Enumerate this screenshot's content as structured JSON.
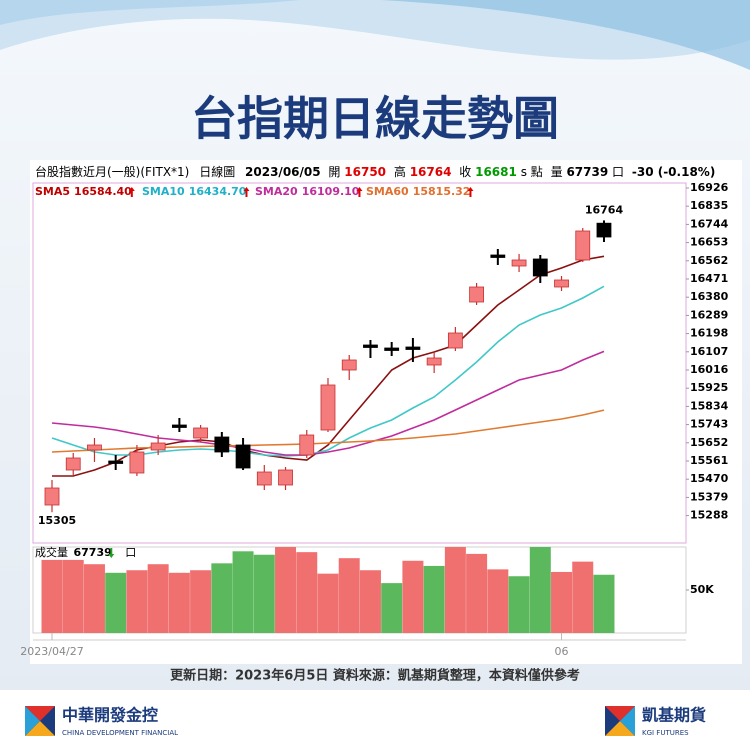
{
  "chart_data": {
    "type": "candlestick",
    "title": "台指期日線走勢圖",
    "header": {
      "instrument": "台股指數近月(一般)(FITX*1)",
      "period": "日線圖",
      "date": "2023/06/05",
      "open_label": "開",
      "high_label": "高",
      "close_label": "收",
      "close_suffix": "s 點",
      "volume_label": "量",
      "unit": "口",
      "change": "-30 (-0.18%)"
    },
    "categories": [
      "2023/04/27",
      null,
      null,
      null,
      null,
      null,
      null,
      null,
      null,
      null,
      null,
      null,
      null,
      null,
      null,
      null,
      null,
      null,
      null,
      null,
      null,
      null,
      null,
      null,
      "06",
      null,
      null
    ],
    "open": [
      15341,
      15516,
      15616,
      15561,
      15501,
      15616,
      15741,
      15676,
      15681,
      15641,
      15441,
      15441,
      15591,
      15716,
      16016,
      16141,
      16126,
      16131,
      16041,
      16126,
      16356,
      16591,
      16536,
      16571,
      16431,
      16566,
      16750
    ],
    "high": [
      15466,
      15601,
      15676,
      15591,
      15641,
      15691,
      15776,
      15741,
      15706,
      15676,
      15541,
      15531,
      15716,
      15976,
      16091,
      16166,
      16156,
      16176,
      16106,
      16231,
      16451,
      16621,
      16596,
      16591,
      16486,
      16726,
      16764
    ],
    "low": [
      15305,
      15491,
      15556,
      15516,
      15486,
      15591,
      15706,
      15656,
      15581,
      15516,
      15416,
      15416,
      15576,
      15706,
      15966,
      16076,
      16086,
      16056,
      16001,
      16111,
      16341,
      16541,
      16506,
      16451,
      16411,
      16556,
      16656
    ],
    "close": [
      15426,
      15576,
      15641,
      15556,
      15606,
      15651,
      15736,
      15726,
      15606,
      15526,
      15506,
      15516,
      15691,
      15941,
      16066,
      16131,
      16126,
      16126,
      16076,
      16201,
      16431,
      16586,
      16566,
      16486,
      16466,
      16711,
      16681
    ],
    "up_color": "#f47c7c",
    "down_color": "#000000",
    "series": [
      {
        "name": "SMA5",
        "color": "#8b1010",
        "label_color": "#c00000",
        "value_label": "16584.40",
        "values": [
          15486,
          15486,
          15516,
          15556,
          15616,
          15636,
          15656,
          15666,
          15656,
          15616,
          15591,
          15576,
          15566,
          15641,
          15766,
          15891,
          16016,
          16076,
          16106,
          16141,
          16241,
          16341,
          16416,
          16491,
          16526,
          16566,
          16584.4
        ]
      },
      {
        "name": "SMA10",
        "color": "#40c8c8",
        "label_color": "#20b0c8",
        "value_label": "16434.70",
        "values": [
          15676,
          15641,
          15606,
          15591,
          15591,
          15606,
          15616,
          15621,
          15616,
          15606,
          15591,
          15586,
          15591,
          15616,
          15676,
          15726,
          15766,
          15826,
          15881,
          15966,
          16056,
          16156,
          16241,
          16291,
          16326,
          16376,
          16434.7
        ]
      },
      {
        "name": "SMA20",
        "color": "#c02c9c",
        "label_color": "#c02c9c",
        "value_label": "16109.10",
        "values": [
          15751,
          15741,
          15731,
          15716,
          15696,
          15676,
          15666,
          15656,
          15641,
          15626,
          15606,
          15591,
          15591,
          15606,
          15626,
          15656,
          15686,
          15726,
          15766,
          15816,
          15866,
          15916,
          15966,
          15991,
          16016,
          16066,
          16109.1
        ]
      },
      {
        "name": "SMA60",
        "color": "#e07a30",
        "label_color": "#e07030",
        "value_label": "15815.32",
        "values": [
          15606,
          15611,
          15616,
          15621,
          15626,
          15628,
          15631,
          15634,
          15636,
          15638,
          15641,
          15643,
          15646,
          15651,
          15656,
          15661,
          15668,
          15676,
          15686,
          15696,
          15711,
          15726,
          15741,
          15756,
          15771,
          15791,
          15815.32
        ]
      }
    ],
    "ylim": [
      15151,
      16951
    ],
    "yticks": [
      16926,
      16835,
      16744,
      16653,
      16562,
      16471,
      16380,
      16289,
      16198,
      16107,
      16016,
      15925,
      15834,
      15743,
      15652,
      15561,
      15470,
      15379,
      15288
    ],
    "volume": {
      "label": "成交量",
      "values": [
        85000,
        85000,
        80000,
        70000,
        73000,
        80000,
        70000,
        73000,
        81000,
        95000,
        91000,
        100000,
        94000,
        69000,
        87000,
        73000,
        58000,
        84000,
        78000,
        100000,
        92000,
        74000,
        66000,
        100000,
        71000,
        83000,
        67739
      ],
      "colors": [
        "#f07070",
        "#f07070",
        "#f07070",
        "#5cb85c",
        "#f07070",
        "#f07070",
        "#f07070",
        "#f07070",
        "#5cb85c",
        "#5cb85c",
        "#5cb85c",
        "#f07070",
        "#f07070",
        "#f07070",
        "#f07070",
        "#f07070",
        "#5cb85c",
        "#f07070",
        "#5cb85c",
        "#f07070",
        "#f07070",
        "#f07070",
        "#5cb85c",
        "#5cb85c",
        "#f07070",
        "#f07070",
        "#5cb85c"
      ],
      "ylim": [
        0,
        100000
      ],
      "yticks": [
        {
          "value": 50000,
          "label": "50K"
        }
      ]
    }
  },
  "footer": "更新日期：2023年6月5日 資料來源：凱基期貨整理，本資料僅供參考",
  "logos": {
    "left_name": "中華開發金控",
    "left_sub": "CHINA DEVELOPMENT FINANCIAL",
    "right_name": "凱基期貨",
    "right_sub": "KGI FUTURES"
  }
}
